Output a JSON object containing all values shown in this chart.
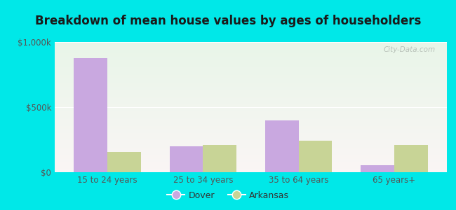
{
  "title": "Breakdown of mean house values by ages of householders",
  "categories": [
    "15 to 24 years",
    "25 to 34 years",
    "35 to 64 years",
    "65 years+"
  ],
  "dover_values": [
    875000,
    200000,
    400000,
    55000
  ],
  "arkansas_values": [
    155000,
    210000,
    240000,
    210000
  ],
  "dover_color": "#c9a8e0",
  "arkansas_color": "#c8d496",
  "ylim": [
    0,
    1000000
  ],
  "yticks": [
    0,
    500000,
    1000000
  ],
  "ytick_labels": [
    "$0",
    "$500k",
    "$1,000k"
  ],
  "legend_labels": [
    "Dover",
    "Arkansas"
  ],
  "bar_width": 0.35,
  "title_fontsize": 12,
  "tick_fontsize": 8.5,
  "watermark_text": "City-Data.com",
  "outer_bg": "#00e8e8"
}
